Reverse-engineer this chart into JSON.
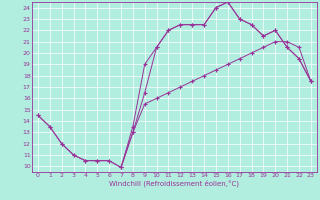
{
  "xlabel": "Windchill (Refroidissement éolien,°C)",
  "bg_color": "#b2eedf",
  "line_color": "#993399",
  "grid_color": "#ffffff",
  "xlim": [
    -0.5,
    23.5
  ],
  "ylim": [
    9.5,
    24.5
  ],
  "xticks": [
    0,
    1,
    2,
    3,
    4,
    5,
    6,
    7,
    8,
    9,
    10,
    11,
    12,
    13,
    14,
    15,
    16,
    17,
    18,
    19,
    20,
    21,
    22,
    23
  ],
  "yticks": [
    10,
    11,
    12,
    13,
    14,
    15,
    16,
    17,
    18,
    19,
    20,
    21,
    22,
    23,
    24
  ],
  "series1_x": [
    0,
    1,
    2,
    3,
    4,
    5,
    6,
    7,
    8,
    9,
    10,
    11,
    12,
    13,
    14,
    15,
    16,
    17,
    18,
    19,
    20,
    21,
    22,
    23
  ],
  "series1_y": [
    14.5,
    13.5,
    12.0,
    11.0,
    10.5,
    10.5,
    10.5,
    9.9,
    13.5,
    19.0,
    20.5,
    22.0,
    22.5,
    22.5,
    22.5,
    24.0,
    24.5,
    23.0,
    22.5,
    21.5,
    22.0,
    20.5,
    19.5,
    17.5
  ],
  "series2_x": [
    0,
    1,
    2,
    3,
    4,
    5,
    6,
    7,
    8,
    9,
    10,
    11,
    12,
    13,
    14,
    15,
    16,
    17,
    18,
    19,
    20,
    21,
    22,
    23
  ],
  "series2_y": [
    14.5,
    13.5,
    12.0,
    11.0,
    10.5,
    10.5,
    10.5,
    9.9,
    13.0,
    15.5,
    16.0,
    16.5,
    17.0,
    17.5,
    18.0,
    18.5,
    19.0,
    19.5,
    20.0,
    20.5,
    21.0,
    21.0,
    20.5,
    17.5
  ],
  "series3_x": [
    7,
    8,
    9,
    10,
    11,
    12,
    13,
    14,
    15,
    16,
    17,
    18,
    19,
    20,
    21,
    22,
    23
  ],
  "series3_y": [
    9.9,
    13.0,
    16.5,
    20.5,
    22.0,
    22.5,
    22.5,
    22.5,
    24.0,
    24.5,
    23.0,
    22.5,
    21.5,
    22.0,
    20.5,
    19.5,
    17.5
  ]
}
